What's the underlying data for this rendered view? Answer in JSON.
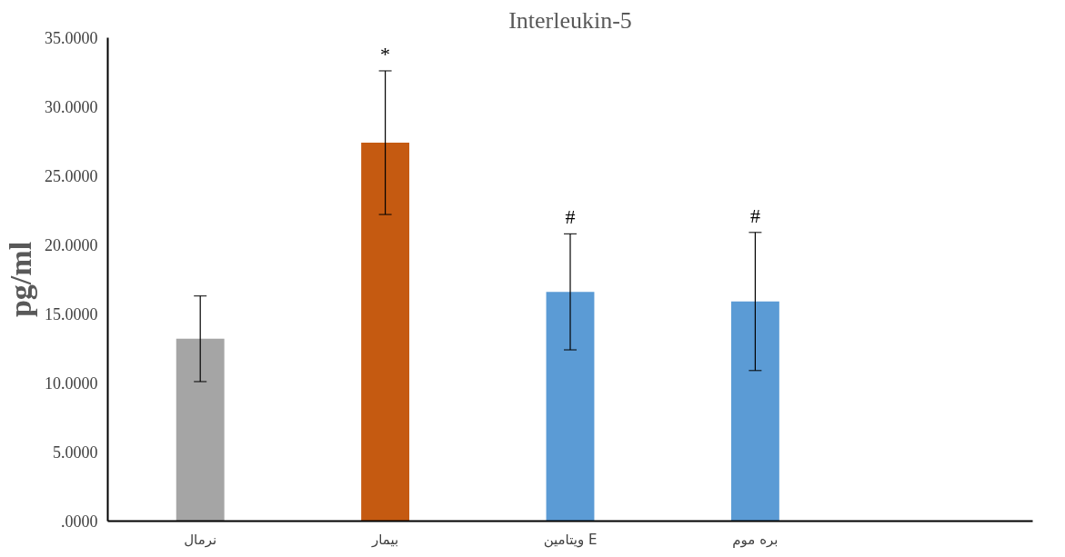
{
  "chart_data": {
    "type": "bar",
    "title": "Interleukin-5",
    "ylabel": "pg/ml",
    "categories": [
      "نرمال",
      "بیمار",
      "ویتامین E",
      "بره موم",
      null
    ],
    "values": [
      13.2,
      27.4,
      16.6,
      15.9,
      null
    ],
    "colors": [
      "#a5a5a5",
      "#c55a11",
      "#5b9bd5",
      "#5b9bd5",
      "#5b9bd5"
    ],
    "errors": [
      3.1,
      5.2,
      4.2,
      5.0,
      null
    ],
    "ylim": [
      0,
      35
    ],
    "yticks": [
      {
        "value": 0,
        "label": ".0000"
      },
      {
        "value": 5,
        "label": "5.0000"
      },
      {
        "value": 10,
        "label": "10.0000"
      },
      {
        "value": 15,
        "label": "15.0000"
      },
      {
        "value": 20,
        "label": "20.0000"
      },
      {
        "value": 25,
        "label": "25.0000"
      },
      {
        "value": 30,
        "label": "30.0000"
      },
      {
        "value": 35,
        "label": "35.0000"
      }
    ],
    "annotations": [
      "*",
      "#",
      "#"
    ],
    "grid": false
  }
}
